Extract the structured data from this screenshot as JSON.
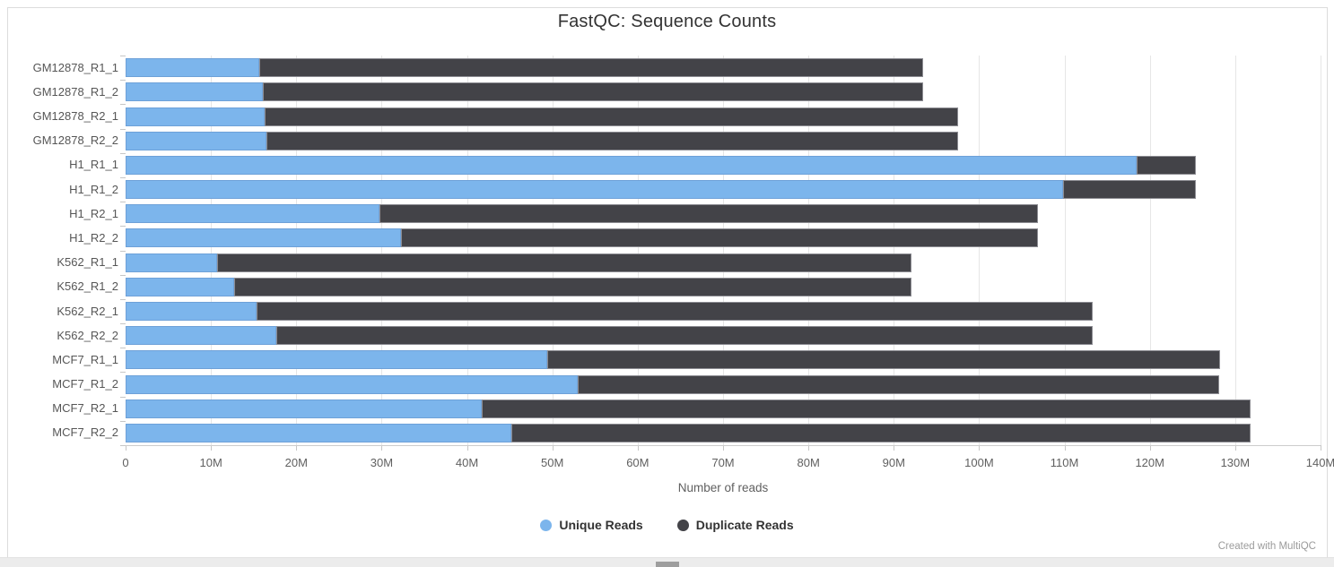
{
  "footer": {
    "credit": "Created with MultiQC"
  },
  "chart_data": {
    "type": "bar",
    "orientation": "horizontal",
    "stacked": true,
    "title": "FastQC: Sequence Counts",
    "xlabel": "Number of reads",
    "grid": true,
    "legend_position": "bottom",
    "xlim_millions": [
      0,
      140
    ],
    "x_tick_step_millions": 10,
    "x_tick_labels": [
      "0",
      "10M",
      "20M",
      "30M",
      "40M",
      "50M",
      "60M",
      "70M",
      "80M",
      "90M",
      "100M",
      "110M",
      "120M",
      "130M",
      "140M"
    ],
    "categories": [
      "GM12878_R1_1",
      "GM12878_R1_2",
      "GM12878_R2_1",
      "GM12878_R2_2",
      "H1_R1_1",
      "H1_R1_2",
      "H1_R2_1",
      "H1_R2_2",
      "K562_R1_1",
      "K562_R1_2",
      "K562_R2_1",
      "K562_R2_2",
      "MCF7_R1_1",
      "MCF7_R1_2",
      "MCF7_R2_1",
      "MCF7_R2_2"
    ],
    "series": [
      {
        "name": "Unique Reads",
        "color": "#7cb5ec",
        "values_millions": [
          15.7,
          16.1,
          16.3,
          16.5,
          118.4,
          109.8,
          29.7,
          32.3,
          10.7,
          12.7,
          15.3,
          17.6,
          49.4,
          53.0,
          41.7,
          45.2
        ]
      },
      {
        "name": "Duplicate Reads",
        "color": "#434348",
        "values_millions": [
          77.7,
          77.3,
          81.2,
          81.0,
          7.0,
          15.6,
          77.2,
          74.6,
          81.4,
          79.4,
          98.0,
          95.7,
          78.8,
          75.1,
          90.1,
          86.6
        ]
      }
    ],
    "totals_millions": [
      93.4,
      93.4,
      97.5,
      97.5,
      125.4,
      125.4,
      106.9,
      106.9,
      92.1,
      92.1,
      113.3,
      113.3,
      128.2,
      128.1,
      131.8,
      131.8
    ]
  }
}
